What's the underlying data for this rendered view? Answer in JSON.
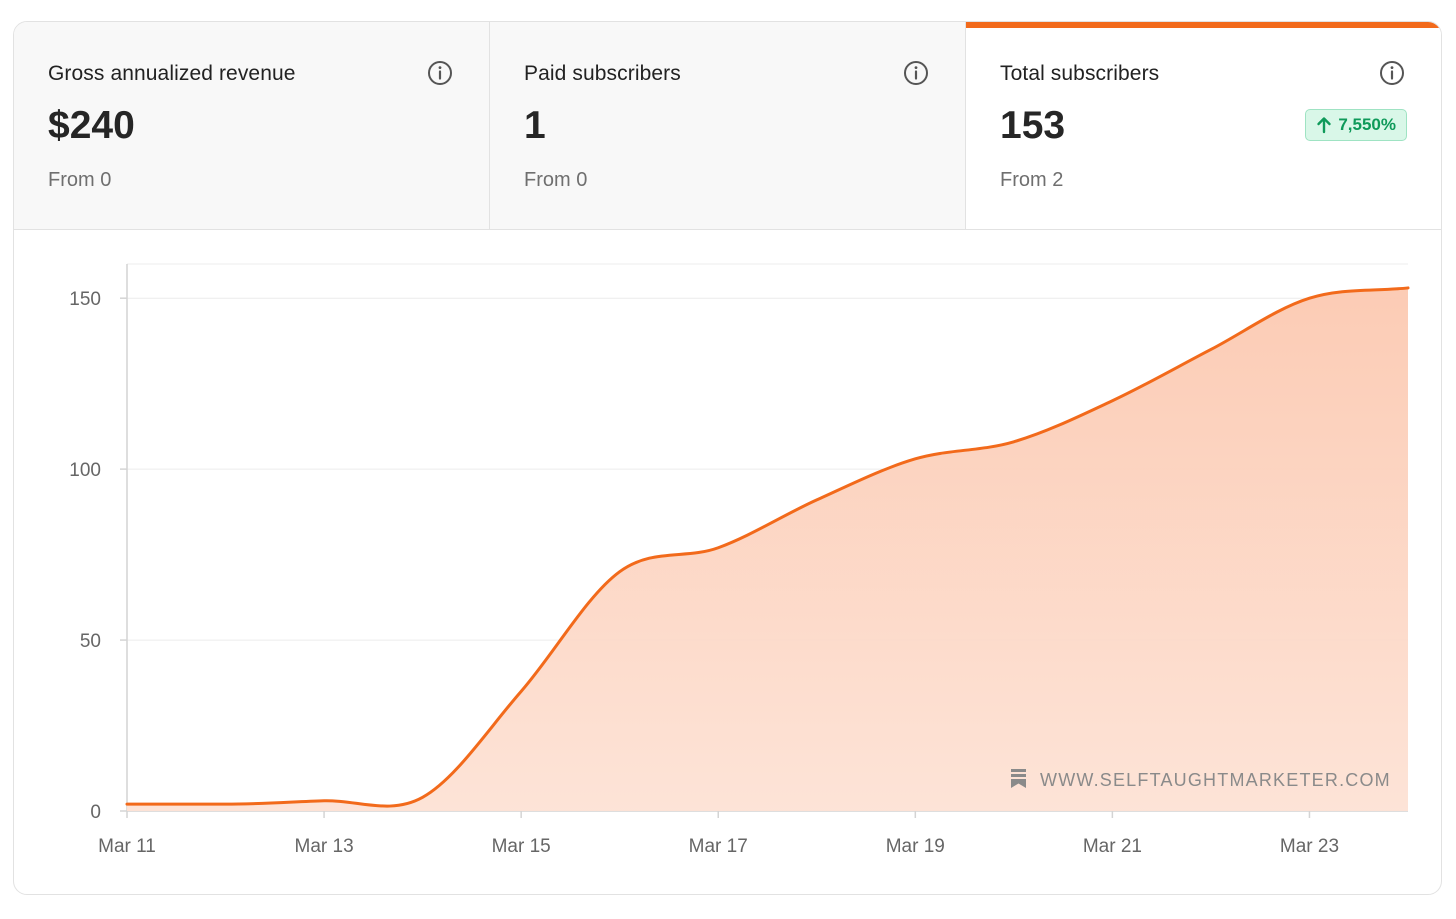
{
  "colors": {
    "accent": "#f26a1b",
    "area_fill": "#fcd2bf",
    "badge_bg": "#d9f7e8",
    "badge_text": "#0f9a5a",
    "grid": "#ececec",
    "axis": "#d4d4d4"
  },
  "stats": [
    {
      "label": "Gross annualized revenue",
      "value": "$240",
      "from": "From 0",
      "icon": "info-icon"
    },
    {
      "label": "Paid subscribers",
      "value": "1",
      "from": "From 0",
      "icon": "info-icon"
    },
    {
      "label": "Total subscribers",
      "value": "153",
      "from": "From 2",
      "icon": "info-icon",
      "badge": "7,550%",
      "badge_icon": "arrow-up-icon",
      "active": true
    }
  ],
  "watermark": {
    "icon": "bookmark-icon",
    "text": "WWW.SELFTAUGHTMARKETER.COM"
  },
  "chart_data": {
    "type": "area",
    "x": [
      "Mar 11",
      "Mar 12",
      "Mar 13",
      "Mar 14",
      "Mar 15",
      "Mar 16",
      "Mar 17",
      "Mar 18",
      "Mar 19",
      "Mar 20",
      "Mar 21",
      "Mar 22",
      "Mar 23",
      "Mar 24"
    ],
    "x_tick_labels": [
      "Mar 11",
      "Mar 13",
      "Mar 15",
      "Mar 17",
      "Mar 19",
      "Mar 21",
      "Mar 23"
    ],
    "series": [
      {
        "values": [
          2,
          2,
          3,
          4,
          35,
          70,
          77,
          91,
          103,
          108,
          120,
          135,
          150,
          153
        ]
      }
    ],
    "y_ticks": [
      0,
      50,
      100,
      150
    ],
    "ylim": [
      0,
      160
    ],
    "title": "",
    "xlabel": "",
    "ylabel": "",
    "grid": true,
    "legend": "none"
  }
}
